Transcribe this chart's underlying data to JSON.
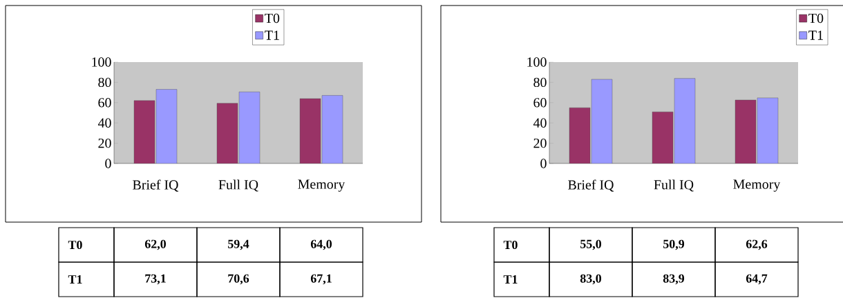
{
  "chart_data": [
    {
      "type": "bar",
      "categories": [
        "Brief IQ",
        "Full IQ",
        "Memory"
      ],
      "ylim": [
        0,
        100
      ],
      "yticks": [
        0,
        20,
        40,
        60,
        80,
        100
      ],
      "legend": "top",
      "series": [
        {
          "name": "T0",
          "color": "#993366",
          "values": [
            62.0,
            59.4,
            64.0
          ],
          "value_labels": [
            "62,0",
            "59,4",
            "64,0"
          ]
        },
        {
          "name": "T1",
          "color": "#9999ff",
          "values": [
            73.1,
            70.6,
            67.1
          ],
          "value_labels": [
            "73,1",
            "70,6",
            "67,1"
          ]
        }
      ]
    },
    {
      "type": "bar",
      "categories": [
        "Brief IQ",
        "Full IQ",
        "Memory"
      ],
      "ylim": [
        0,
        100
      ],
      "yticks": [
        0,
        20,
        40,
        60,
        80,
        100
      ],
      "legend": "top right",
      "series": [
        {
          "name": "T0",
          "color": "#993366",
          "values": [
            55.0,
            50.9,
            62.6
          ],
          "value_labels": [
            "55,0",
            "50,9",
            "62,6"
          ]
        },
        {
          "name": "T1",
          "color": "#9999ff",
          "values": [
            83.0,
            83.9,
            64.7
          ],
          "value_labels": [
            "83,0",
            "83,9",
            "64,7"
          ]
        }
      ]
    }
  ]
}
